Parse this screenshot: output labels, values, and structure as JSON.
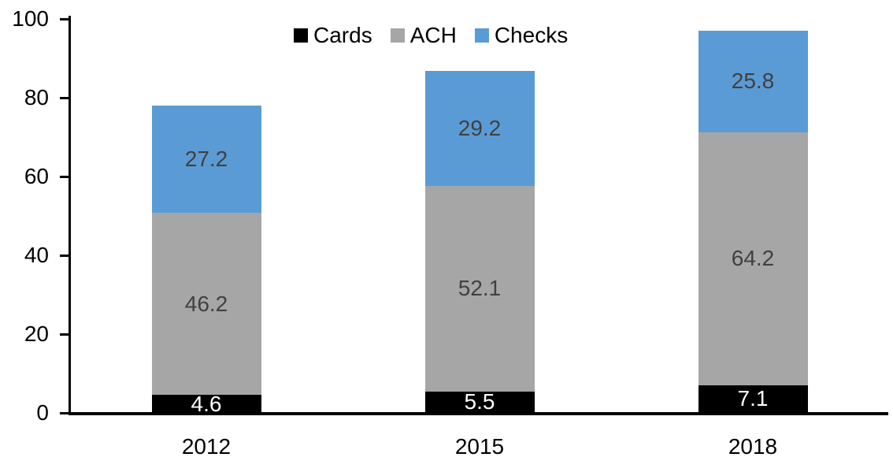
{
  "chart_data": {
    "type": "bar",
    "stacked": true,
    "title": "",
    "xlabel": "",
    "ylabel": "",
    "categories": [
      "2012",
      "2015",
      "2018"
    ],
    "series": [
      {
        "name": "Cards",
        "color": "#000000",
        "label_color": "#ffffff",
        "values": [
          4.6,
          5.5,
          7.1
        ]
      },
      {
        "name": "ACH",
        "color": "#a6a6a6",
        "label_color": "#404040",
        "values": [
          46.2,
          52.1,
          64.2
        ]
      },
      {
        "name": "Checks",
        "color": "#5b9bd5",
        "label_color": "#404040",
        "values": [
          27.2,
          29.2,
          25.8
        ]
      }
    ],
    "ylim": [
      0,
      100
    ],
    "yticks": [
      0,
      20,
      40,
      60,
      80,
      100
    ],
    "legend_position": "top-center",
    "legend_entries": [
      "Cards",
      "ACH",
      "Checks"
    ],
    "grid": false,
    "axis_color": "#000000",
    "background_color": "#ffffff"
  }
}
